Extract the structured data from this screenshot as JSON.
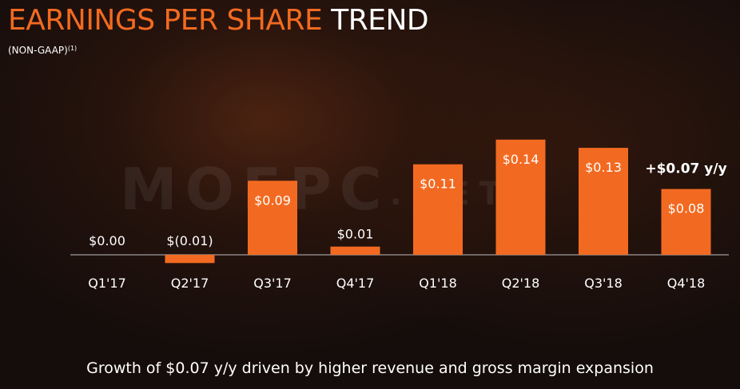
{
  "header": {
    "title_accent": "EARNINGS PER SHARE",
    "title_plain": "TREND",
    "subtitle": "(NON-GAAP)",
    "subtitle_note": "(1)"
  },
  "watermark": {
    "main": "MOEPC",
    "suffix": ".NET"
  },
  "chart_data": {
    "type": "bar",
    "categories": [
      "Q1'17",
      "Q2'17",
      "Q3'17",
      "Q4'17",
      "Q1'18",
      "Q2'18",
      "Q3'18",
      "Q4'18"
    ],
    "values": [
      0.0,
      -0.01,
      0.09,
      0.01,
      0.11,
      0.14,
      0.13,
      0.08
    ],
    "data_labels": [
      "$0.00",
      "$(0.01)",
      "$0.09",
      "$0.01",
      "$0.11",
      "$0.14",
      "$0.13",
      "$0.08"
    ],
    "annotation": "+$0.07 y/y",
    "bar_color": "#f26a21",
    "axis_color": "#bfbfbf",
    "text_color": "#ffffff"
  },
  "footer": {
    "text": "Growth of $0.07 y/y driven by higher revenue and gross margin expansion"
  }
}
